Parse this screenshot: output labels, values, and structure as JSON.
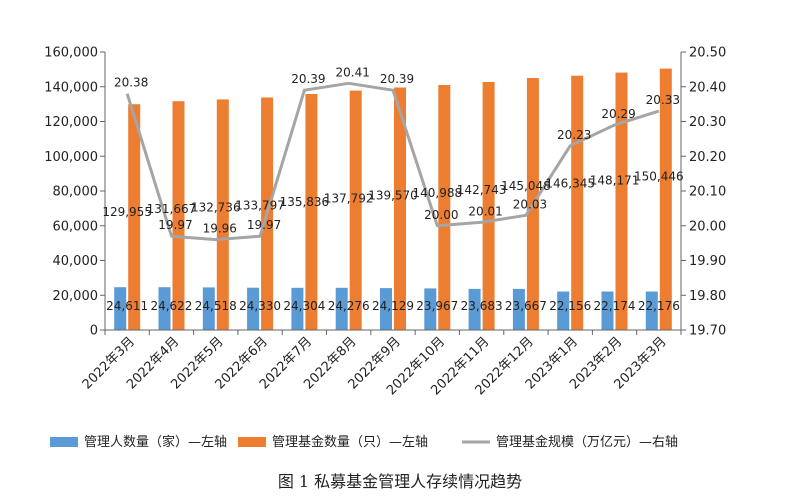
{
  "chart_data": {
    "type": "bar",
    "title": "",
    "caption": "图 1  私募基金管理人存续情况趋势",
    "categories": [
      "2022年3月",
      "2022年4月",
      "2022年5月",
      "2022年6月",
      "2022年7月",
      "2022年8月",
      "2022年9月",
      "2022年10月",
      "2022年11月",
      "2022年12月",
      "2023年1月",
      "2023年2月",
      "2023年3月"
    ],
    "series": [
      {
        "name": "管理人数量（家）—左轴",
        "type": "bar",
        "axis": "left",
        "color": "#5B9BD5",
        "values": [
          24611,
          24622,
          24518,
          24330,
          24304,
          24276,
          24129,
          23967,
          23683,
          23667,
          22156,
          22174,
          22176
        ],
        "labels": [
          "24,611",
          "24,622",
          "24,518",
          "24,330",
          "24,304",
          "24,276",
          "24,129",
          "23,967",
          "23,683",
          "23,667",
          "22,156",
          "22,174",
          "22,176"
        ]
      },
      {
        "name": "管理基金数量（只）—左轴",
        "type": "bar",
        "axis": "left",
        "color": "#ED7D31",
        "values": [
          129955,
          131667,
          132736,
          133797,
          135836,
          137792,
          139570,
          140988,
          142743,
          145048,
          146345,
          148171,
          150446
        ],
        "labels": [
          "129,955",
          "131,667",
          "132,736",
          "133,797",
          "135,836",
          "137,792",
          "139,570",
          "140,988",
          "142,743",
          "145,048",
          "146,345",
          "148,171",
          "150,446"
        ]
      },
      {
        "name": "管理基金规模（万亿元）—右轴",
        "type": "line",
        "axis": "right",
        "color": "#A5A5A5",
        "values": [
          20.38,
          19.97,
          19.96,
          19.97,
          20.39,
          20.41,
          20.39,
          20.0,
          20.01,
          20.03,
          20.23,
          20.29,
          20.33
        ],
        "labels": [
          "20.38",
          "19.97",
          "19.96",
          "19.97",
          "20.39",
          "20.41",
          "20.39",
          "20.00",
          "20.01",
          "20.03",
          "20.23",
          "20.29",
          "20.33"
        ]
      }
    ],
    "y_left": {
      "lim": [
        0,
        160000
      ],
      "ticks": [
        0,
        20000,
        40000,
        60000,
        80000,
        100000,
        120000,
        140000,
        160000
      ],
      "tick_labels": [
        "0",
        "20,000",
        "40,000",
        "60,000",
        "80,000",
        "100,000",
        "120,000",
        "140,000",
        "160,000"
      ]
    },
    "y_right": {
      "lim": [
        19.7,
        20.5
      ],
      "ticks": [
        19.7,
        19.8,
        19.9,
        20.0,
        20.1,
        20.2,
        20.3,
        20.4,
        20.5
      ],
      "tick_labels": [
        "19.70",
        "19.80",
        "19.90",
        "20.00",
        "20.10",
        "20.20",
        "20.30",
        "20.40",
        "20.50"
      ]
    },
    "grid": false,
    "legend_position": "bottom"
  }
}
